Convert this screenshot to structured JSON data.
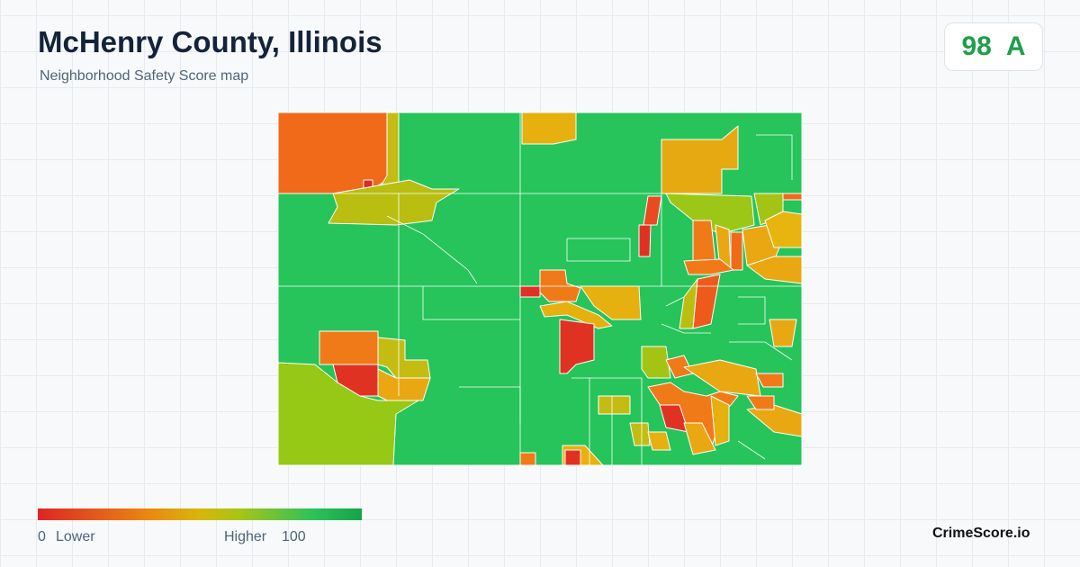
{
  "header": {
    "title": "McHenry County, Illinois",
    "subtitle": "Neighborhood Safety Score map"
  },
  "score": {
    "value": 98,
    "grade": "A"
  },
  "legend": {
    "min": 0,
    "min_label": "Lower",
    "max_label": "Higher",
    "max": 100
  },
  "brand": "CrimeScore.io"
}
